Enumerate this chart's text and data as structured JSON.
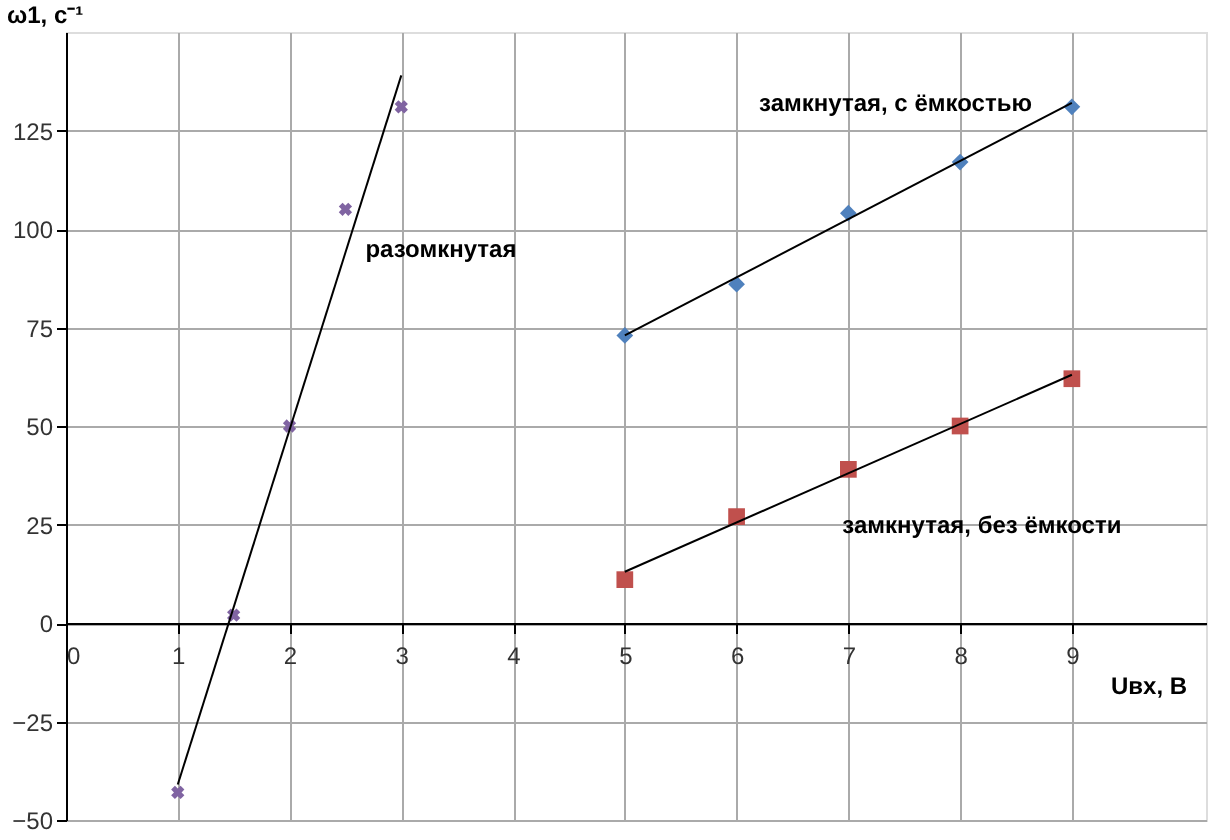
{
  "chart_data": {
    "type": "scatter",
    "xlabel": "Uвх, В",
    "ylabel": "ω1, с⁻¹",
    "xlim": [
      0,
      10.2
    ],
    "xticks": [
      0,
      1,
      2,
      3,
      4,
      5,
      6,
      7,
      8,
      9
    ],
    "ylim": [
      -50,
      150
    ],
    "yticks": [
      -50,
      -25,
      0,
      25,
      50,
      75,
      100,
      125
    ],
    "grid": true,
    "legend": false,
    "series": [
      {
        "name": "разомкнутая",
        "marker": "cross",
        "color": "#8064a2",
        "x": [
          1,
          1.5,
          2,
          2.5,
          3
        ],
        "values": [
          -43,
          2,
          50,
          105,
          131
        ]
      },
      {
        "type": "line",
        "marker": "none",
        "line_style": "solid",
        "color": "#000000",
        "x": [
          1,
          3
        ],
        "values": [
          -41,
          139
        ]
      },
      {
        "name": "замкнутая, с ёмкостью",
        "marker": "diamond",
        "color": "#4f81bd",
        "x": [
          5,
          6,
          7,
          8,
          9
        ],
        "values": [
          73,
          86,
          104,
          117,
          131
        ]
      },
      {
        "type": "line",
        "marker": "none",
        "line_style": "solid",
        "color": "#000000",
        "x": [
          5,
          9
        ],
        "values": [
          73,
          132
        ]
      },
      {
        "name": "замкнутая, без ёмкости",
        "marker": "square",
        "color": "#c0504d",
        "x": [
          5,
          6,
          7,
          8,
          9
        ],
        "values": [
          11,
          27,
          39,
          50,
          62
        ]
      },
      {
        "type": "line",
        "marker": "none",
        "line_style": "solid",
        "color": "#000000",
        "x": [
          5,
          9
        ],
        "values": [
          13,
          63
        ]
      }
    ]
  }
}
